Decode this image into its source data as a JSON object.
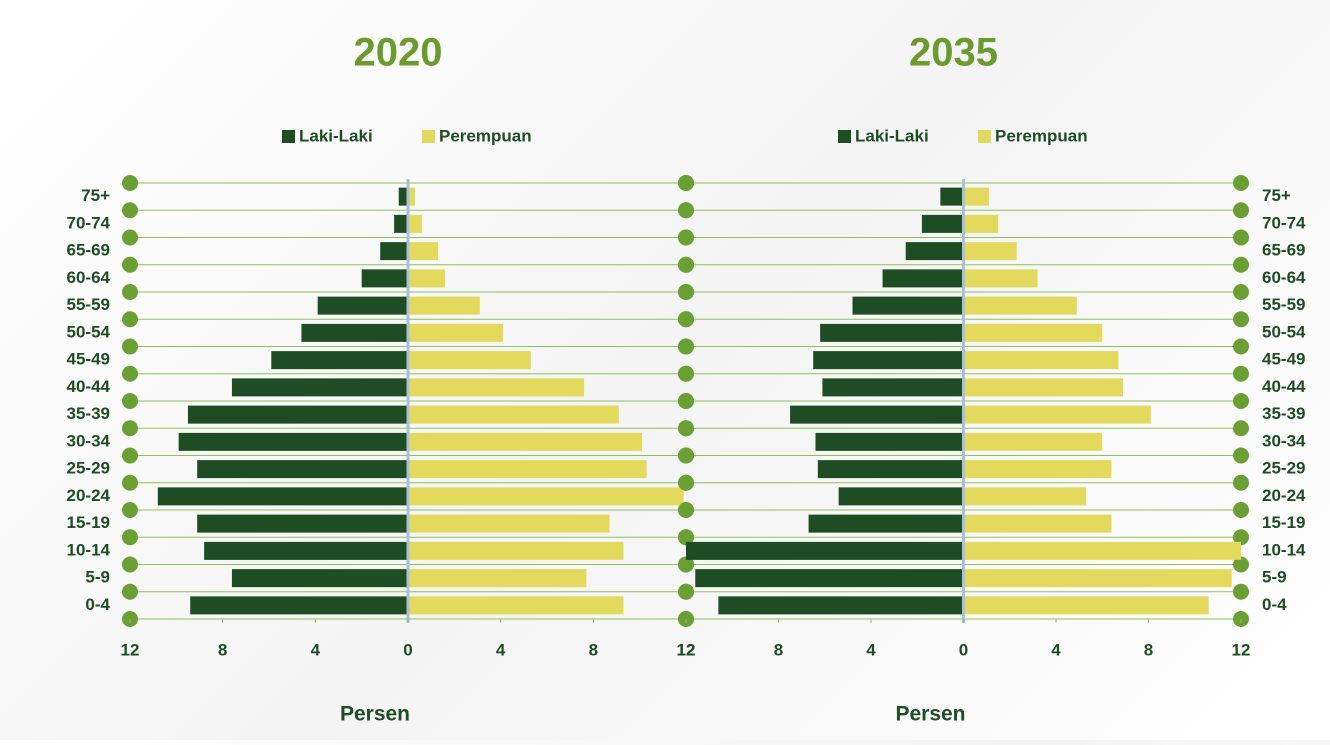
{
  "chart_data": [
    {
      "type": "pyramid",
      "title": "2020",
      "xlabel": "Persen",
      "categories": [
        "75+",
        "70-74",
        "65-69",
        "60-64",
        "55-59",
        "50-54",
        "45-49",
        "40-44",
        "35-39",
        "30-34",
        "25-29",
        "20-24",
        "15-19",
        "10-14",
        "5-9",
        "0-4"
      ],
      "series": [
        {
          "name": "Laki-Laki",
          "color": "#1e4d24",
          "values": [
            0.4,
            0.6,
            1.2,
            2.0,
            3.9,
            4.6,
            5.9,
            7.6,
            9.5,
            9.9,
            9.1,
            10.8,
            9.1,
            8.8,
            7.6,
            9.4
          ]
        },
        {
          "name": "Perempuan",
          "color": "#e3d95c",
          "values": [
            0.3,
            0.6,
            1.3,
            1.6,
            3.1,
            4.1,
            5.3,
            7.6,
            9.1,
            10.1,
            10.3,
            11.9,
            8.7,
            9.3,
            7.7,
            9.3
          ]
        }
      ],
      "xlim": [
        -12,
        12
      ],
      "xticks": [
        {
          "value": -12,
          "label": "12"
        },
        {
          "value": -8,
          "label": "8"
        },
        {
          "value": -4,
          "label": "4"
        },
        0,
        4,
        8,
        12
      ]
    },
    {
      "type": "pyramid",
      "title": "2035",
      "xlabel": "Persen",
      "categories": [
        "75+",
        "70-74",
        "65-69",
        "60-64",
        "55-59",
        "50-54",
        "45-49",
        "40-44",
        "35-39",
        "30-34",
        "25-29",
        "20-24",
        "15-19",
        "10-14",
        "5-9",
        "0-4"
      ],
      "series": [
        {
          "name": "Laki-Laki",
          "color": "#1e4d24",
          "values": [
            1.0,
            1.8,
            2.5,
            3.5,
            4.8,
            6.2,
            6.5,
            6.1,
            7.5,
            6.4,
            6.3,
            5.4,
            6.7,
            12.0,
            11.6,
            10.6
          ]
        },
        {
          "name": "Perempuan",
          "color": "#e3d95c",
          "values": [
            1.1,
            1.5,
            2.3,
            3.2,
            4.9,
            6.0,
            6.7,
            6.9,
            8.1,
            6.0,
            6.4,
            5.3,
            6.4,
            12.0,
            11.6,
            10.6
          ]
        }
      ],
      "xlim": [
        -12,
        12
      ],
      "xticks": [
        {
          "value": -12,
          "label": "12"
        },
        {
          "value": -8,
          "label": "8"
        },
        {
          "value": -4,
          "label": "4"
        },
        0,
        4,
        8,
        12
      ]
    }
  ]
}
